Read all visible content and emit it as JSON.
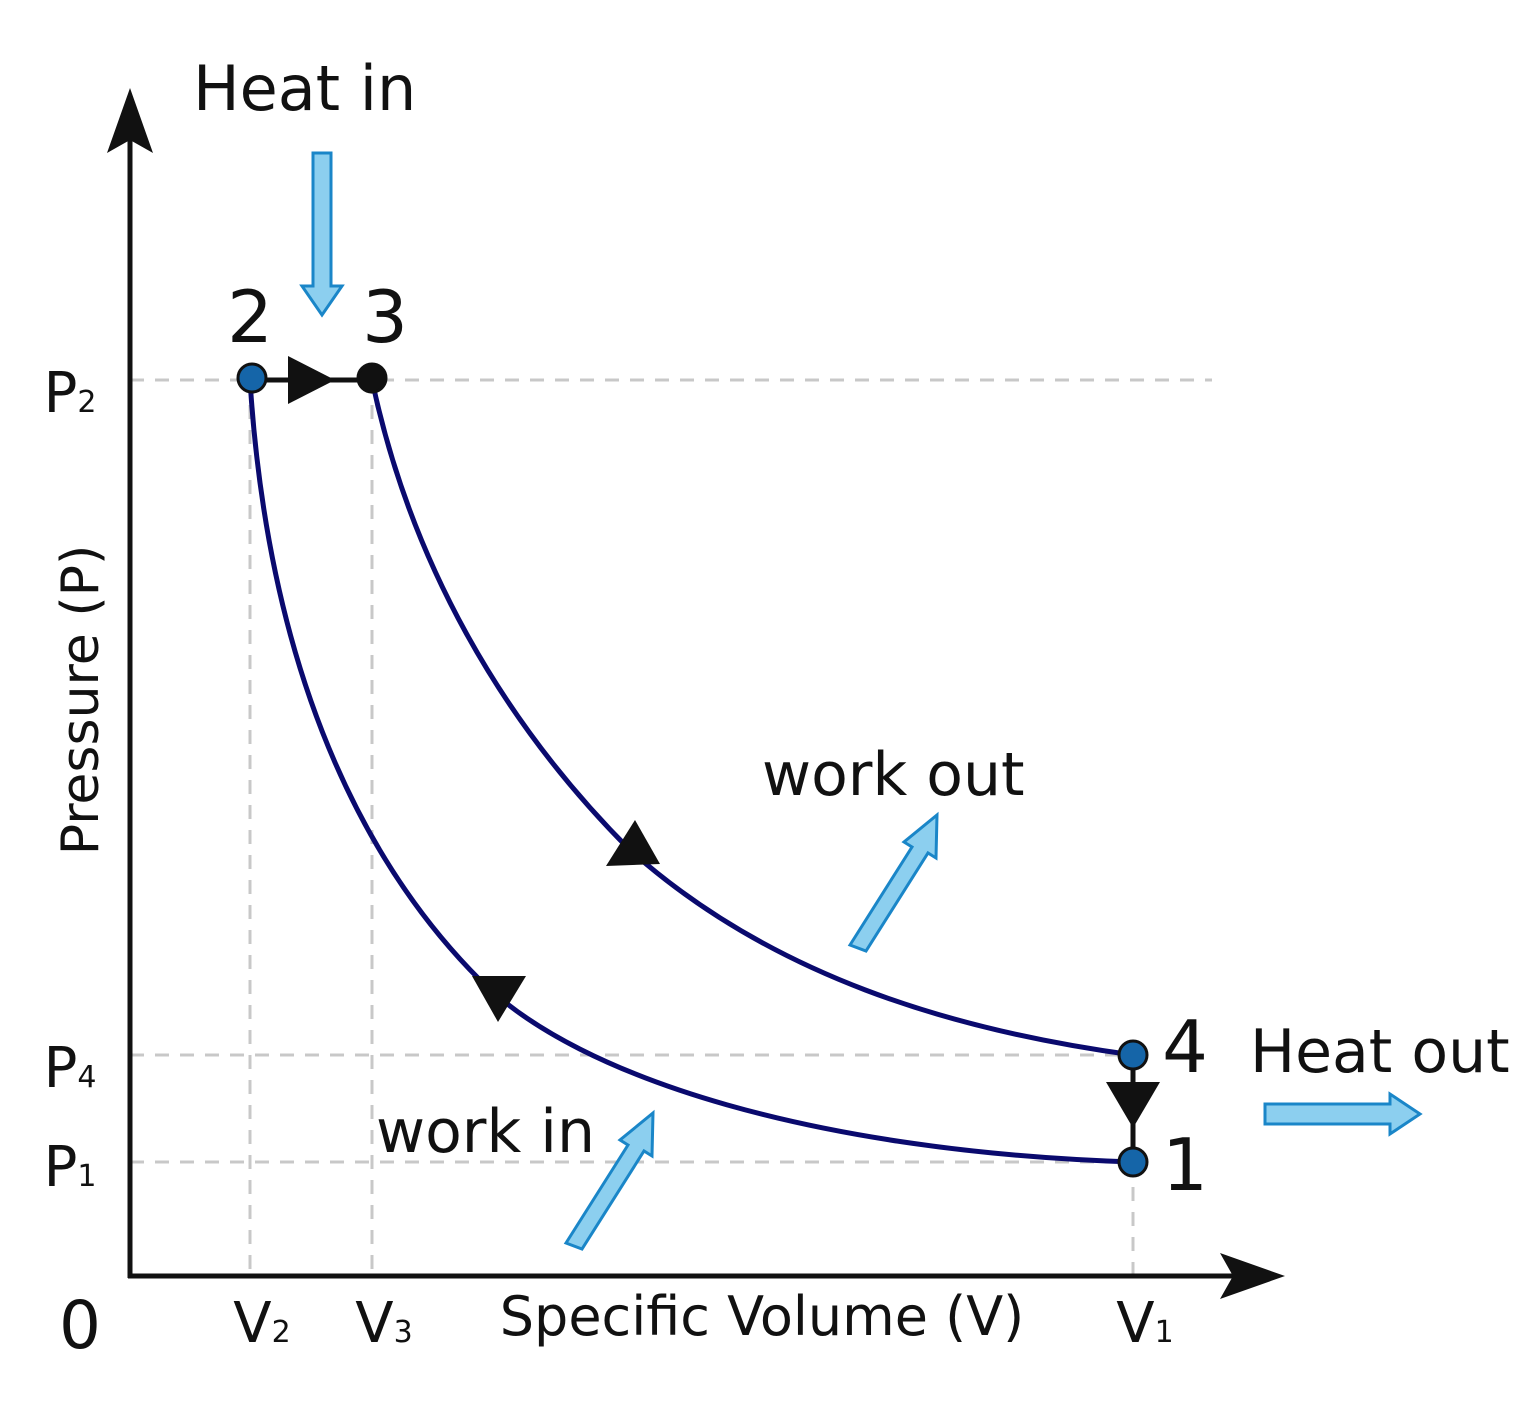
{
  "title": "",
  "axes": {
    "x_label": "Specific Volume (V)",
    "y_label": "Pressure (P)",
    "origin_label": "0"
  },
  "ticks": {
    "v2": {
      "main": "V",
      "sub": "2"
    },
    "v3": {
      "main": "V",
      "sub": "3"
    },
    "v1": {
      "main": "V",
      "sub": "1"
    },
    "p2": {
      "main": "P",
      "sub": "2"
    },
    "p4": {
      "main": "P",
      "sub": "4"
    },
    "p1": {
      "main": "P",
      "sub": "1"
    }
  },
  "states": [
    {
      "label": "1",
      "color": "#1565a8"
    },
    {
      "label": "2",
      "color": "#1565a8"
    },
    {
      "label": "3",
      "color": "#111111"
    },
    {
      "label": "4",
      "color": "#1565a8"
    }
  ],
  "annotations": {
    "heat_in": "Heat in",
    "heat_out": "Heat out",
    "work_in": "work in",
    "work_out": "work out"
  },
  "colors": {
    "curve": "#0a0a6e",
    "arrow_fill": "#8ccfef",
    "arrow_stroke": "#1a86c8",
    "grid": "#c8c8c8",
    "axis": "#111111"
  }
}
